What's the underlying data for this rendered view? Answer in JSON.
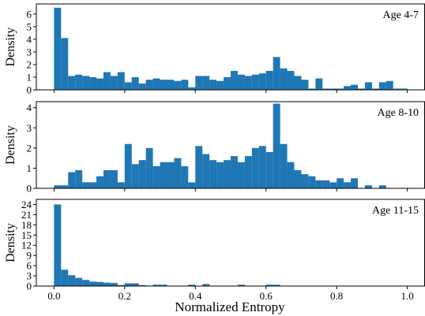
{
  "figure": {
    "xlabel": "Normalized Entropy",
    "bar_color": "#1f77b4"
  },
  "chart_data": [
    {
      "type": "bar",
      "title": "Age 4-7",
      "ylabel": "Density",
      "xlim": [
        -0.05,
        1.05
      ],
      "ylim": [
        0,
        6.8
      ],
      "yticks": [
        0,
        1,
        2,
        3,
        4,
        5,
        6
      ],
      "xticks": [],
      "bin_width": 0.02,
      "x": [
        0.0,
        0.02,
        0.04,
        0.06,
        0.08,
        0.1,
        0.12,
        0.14,
        0.16,
        0.18,
        0.2,
        0.22,
        0.24,
        0.26,
        0.28,
        0.3,
        0.32,
        0.34,
        0.36,
        0.38,
        0.4,
        0.42,
        0.44,
        0.46,
        0.48,
        0.5,
        0.52,
        0.54,
        0.56,
        0.58,
        0.6,
        0.62,
        0.64,
        0.66,
        0.68,
        0.7,
        0.72,
        0.74,
        0.76,
        0.78,
        0.8,
        0.82,
        0.84,
        0.86,
        0.88,
        0.9,
        0.92,
        0.94,
        0.96,
        0.98
      ],
      "values": [
        6.5,
        4.1,
        1.1,
        1.2,
        1.1,
        1.0,
        0.9,
        1.4,
        1.1,
        1.4,
        0.6,
        1.0,
        0.5,
        0.8,
        0.9,
        0.8,
        0.8,
        0.7,
        0.8,
        0.2,
        1.1,
        1.1,
        0.8,
        0.7,
        1.0,
        1.5,
        1.2,
        1.1,
        1.2,
        1.3,
        1.5,
        2.6,
        1.7,
        1.5,
        1.1,
        0.8,
        0.1,
        0.9,
        0.1,
        0.1,
        0.1,
        0.3,
        0.4,
        0.1,
        0.6,
        0.1,
        0.6,
        0.7,
        0.1,
        0.1
      ]
    },
    {
      "type": "bar",
      "title": "Age 8-10",
      "ylabel": "Density",
      "xlim": [
        -0.05,
        1.05
      ],
      "ylim": [
        0,
        4.3
      ],
      "yticks": [
        0,
        1,
        2,
        3,
        4
      ],
      "xticks": [],
      "bin_width": 0.02,
      "x": [
        0.0,
        0.02,
        0.04,
        0.06,
        0.08,
        0.1,
        0.12,
        0.14,
        0.16,
        0.18,
        0.2,
        0.22,
        0.24,
        0.26,
        0.28,
        0.3,
        0.32,
        0.34,
        0.36,
        0.38,
        0.4,
        0.42,
        0.44,
        0.46,
        0.48,
        0.5,
        0.52,
        0.54,
        0.56,
        0.58,
        0.6,
        0.62,
        0.64,
        0.66,
        0.68,
        0.7,
        0.72,
        0.74,
        0.76,
        0.78,
        0.8,
        0.82,
        0.84,
        0.86,
        0.88,
        0.9,
        0.92,
        0.94,
        0.96,
        0.98
      ],
      "values": [
        0.15,
        0.15,
        0.8,
        0.9,
        0.3,
        0.3,
        0.6,
        0.9,
        0.9,
        0.3,
        2.2,
        1.2,
        1.4,
        2.0,
        1.1,
        1.3,
        1.3,
        1.5,
        1.1,
        0.3,
        2.1,
        1.7,
        1.4,
        1.3,
        1.4,
        1.6,
        1.3,
        1.6,
        2.0,
        2.1,
        1.8,
        4.2,
        2.2,
        1.3,
        0.9,
        0.7,
        0.6,
        0.4,
        0.4,
        0.3,
        0.5,
        0.3,
        0.5,
        0.0,
        0.15,
        0.0,
        0.15,
        0.0,
        0.0,
        0.0
      ]
    },
    {
      "type": "bar",
      "title": "Age 11-15",
      "ylabel": "Density",
      "xlim": [
        -0.05,
        1.05
      ],
      "ylim": [
        0,
        25.5
      ],
      "yticks": [
        0,
        3,
        6,
        9,
        12,
        15,
        18,
        21,
        24
      ],
      "xticks": [
        0.0,
        0.2,
        0.4,
        0.6,
        0.8,
        1.0
      ],
      "xtick_labels": [
        "0.0",
        "0.2",
        "0.4",
        "0.6",
        "0.8",
        "1.0"
      ],
      "bin_width": 0.02,
      "x": [
        0.0,
        0.02,
        0.04,
        0.06,
        0.08,
        0.1,
        0.12,
        0.14,
        0.16,
        0.18,
        0.2,
        0.22,
        0.24,
        0.26,
        0.28,
        0.3,
        0.32,
        0.34,
        0.36,
        0.38,
        0.4,
        0.42,
        0.44,
        0.46,
        0.48,
        0.5,
        0.52,
        0.54,
        0.56,
        0.58,
        0.6,
        0.62,
        0.64,
        0.66,
        0.68,
        0.7,
        0.72,
        0.74,
        0.76,
        0.78,
        0.8,
        0.82,
        0.84,
        0.86,
        0.88,
        0.9,
        0.92,
        0.94,
        0.96,
        0.98
      ],
      "values": [
        24.0,
        4.8,
        3.2,
        2.4,
        1.8,
        1.3,
        1.2,
        1.0,
        0.9,
        0.3,
        0.8,
        0.8,
        0.3,
        0.0,
        0.4,
        0.4,
        0.0,
        0.0,
        0.0,
        0.4,
        0.0,
        0.6,
        0.0,
        0.0,
        0.0,
        0.0,
        0.4,
        0.0,
        0.0,
        0.0,
        0.4,
        0.4,
        0.0,
        0.0,
        0.0,
        0.0,
        0.0,
        0.0,
        0.0,
        0.0,
        0.0,
        0.0,
        0.0,
        0.0,
        0.0,
        0.0,
        0.0,
        0.0,
        0.0,
        0.0
      ]
    }
  ]
}
